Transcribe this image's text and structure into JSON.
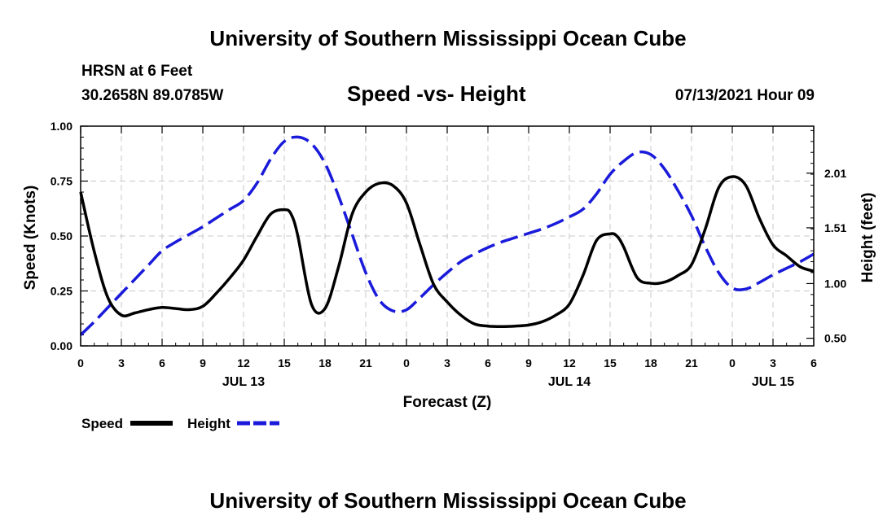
{
  "header": {
    "title": "University of Southern Mississippi Ocean Cube",
    "station": "HRSN at 6 Feet",
    "coords": "30.2658N  89.0785W",
    "chart_title": "Speed -vs- Height",
    "datetime": "07/13/2021 Hour 09"
  },
  "footer": {
    "title": "University of Southern Mississippi Ocean Cube"
  },
  "legend": {
    "speed_label": "Speed",
    "height_label": "Height"
  },
  "colors": {
    "speed": "#000000",
    "height": "#1a1adb",
    "grid": "#c8c8c8"
  },
  "chart_data": {
    "type": "line",
    "title": "Speed -vs- Height",
    "xlabel": "Forecast (Z)",
    "ylabel": "Speed (Knots)",
    "y2label": "Height (feet)",
    "x_range_hours": [
      0,
      54
    ],
    "ylim": [
      0,
      1
    ],
    "y2lim": [
      0.43,
      2.44
    ],
    "x_ticks": [
      {
        "h": 0,
        "label": "0"
      },
      {
        "h": 3,
        "label": "3"
      },
      {
        "h": 6,
        "label": "6"
      },
      {
        "h": 9,
        "label": "9"
      },
      {
        "h": 12,
        "label": "12"
      },
      {
        "h": 15,
        "label": "15"
      },
      {
        "h": 18,
        "label": "18"
      },
      {
        "h": 21,
        "label": "21"
      },
      {
        "h": 24,
        "label": "0"
      },
      {
        "h": 27,
        "label": "3"
      },
      {
        "h": 30,
        "label": "6"
      },
      {
        "h": 33,
        "label": "9"
      },
      {
        "h": 36,
        "label": "12"
      },
      {
        "h": 39,
        "label": "15"
      },
      {
        "h": 42,
        "label": "18"
      },
      {
        "h": 45,
        "label": "21"
      },
      {
        "h": 48,
        "label": "0"
      },
      {
        "h": 51,
        "label": "3"
      },
      {
        "h": 54,
        "label": "6"
      }
    ],
    "date_labels": [
      {
        "h": 12,
        "label": "JUL 13"
      },
      {
        "h": 36,
        "label": "JUL 14"
      },
      {
        "h": 51,
        "label": "JUL 15"
      }
    ],
    "y_ticks": [
      {
        "v": 0,
        "label": "0.00"
      },
      {
        "v": 0.25,
        "label": "0.25"
      },
      {
        "v": 0.5,
        "label": "0.50"
      },
      {
        "v": 0.75,
        "label": "0.75"
      },
      {
        "v": 1.0,
        "label": "1.00"
      }
    ],
    "y2_ticks": [
      {
        "v": 0.5,
        "label": "0.50"
      },
      {
        "v": 1.0,
        "label": "1.00"
      },
      {
        "v": 1.51,
        "label": "1.51"
      },
      {
        "v": 2.01,
        "label": "2.01"
      }
    ],
    "series": [
      {
        "name": "Speed",
        "axis": "left",
        "style": "solid",
        "x": [
          0,
          1,
          2,
          3,
          4,
          5,
          6,
          7,
          8,
          9,
          10,
          11,
          12,
          13,
          14,
          15,
          15.5,
          16,
          17,
          18,
          19,
          20,
          21,
          22,
          23,
          24,
          25,
          26,
          27,
          28,
          29,
          30,
          31,
          32,
          33,
          34,
          35,
          36,
          37,
          38,
          39,
          39.5,
          40,
          41,
          42,
          43,
          44,
          45,
          46,
          47,
          48,
          49,
          50,
          51,
          52,
          53,
          54
        ],
        "values": [
          0.7,
          0.43,
          0.22,
          0.14,
          0.15,
          0.165,
          0.175,
          0.17,
          0.165,
          0.18,
          0.24,
          0.31,
          0.39,
          0.5,
          0.6,
          0.62,
          0.6,
          0.5,
          0.19,
          0.17,
          0.36,
          0.6,
          0.7,
          0.74,
          0.73,
          0.65,
          0.46,
          0.28,
          0.2,
          0.14,
          0.1,
          0.09,
          0.088,
          0.09,
          0.095,
          0.11,
          0.14,
          0.19,
          0.32,
          0.48,
          0.51,
          0.5,
          0.45,
          0.31,
          0.285,
          0.29,
          0.32,
          0.37,
          0.53,
          0.72,
          0.77,
          0.73,
          0.58,
          0.46,
          0.41,
          0.36,
          0.34
        ]
      },
      {
        "name": "Height",
        "axis": "right",
        "style": "dashed",
        "x": [
          0,
          1,
          2,
          3,
          4,
          5,
          6,
          7,
          8,
          9,
          10,
          11,
          12,
          13,
          14,
          15,
          16,
          17,
          18,
          19,
          20,
          21,
          22,
          23,
          24,
          25,
          26,
          27,
          28,
          29,
          30,
          31,
          32,
          33,
          34,
          35,
          36,
          37,
          38,
          39,
          40,
          41,
          42,
          43,
          44,
          45,
          46,
          47,
          48,
          49,
          50,
          51,
          52,
          53,
          54
        ],
        "values": [
          0.53,
          0.65,
          0.78,
          0.91,
          1.04,
          1.17,
          1.3,
          1.38,
          1.45,
          1.52,
          1.6,
          1.68,
          1.76,
          1.92,
          2.14,
          2.3,
          2.34,
          2.28,
          2.1,
          1.8,
          1.45,
          1.1,
          0.85,
          0.75,
          0.76,
          0.87,
          0.99,
          1.1,
          1.2,
          1.27,
          1.33,
          1.38,
          1.42,
          1.46,
          1.5,
          1.55,
          1.61,
          1.68,
          1.82,
          2.0,
          2.12,
          2.2,
          2.18,
          2.05,
          1.85,
          1.62,
          1.34,
          1.1,
          0.96,
          0.95,
          1.01,
          1.08,
          1.14,
          1.2,
          1.27
        ]
      }
    ]
  }
}
